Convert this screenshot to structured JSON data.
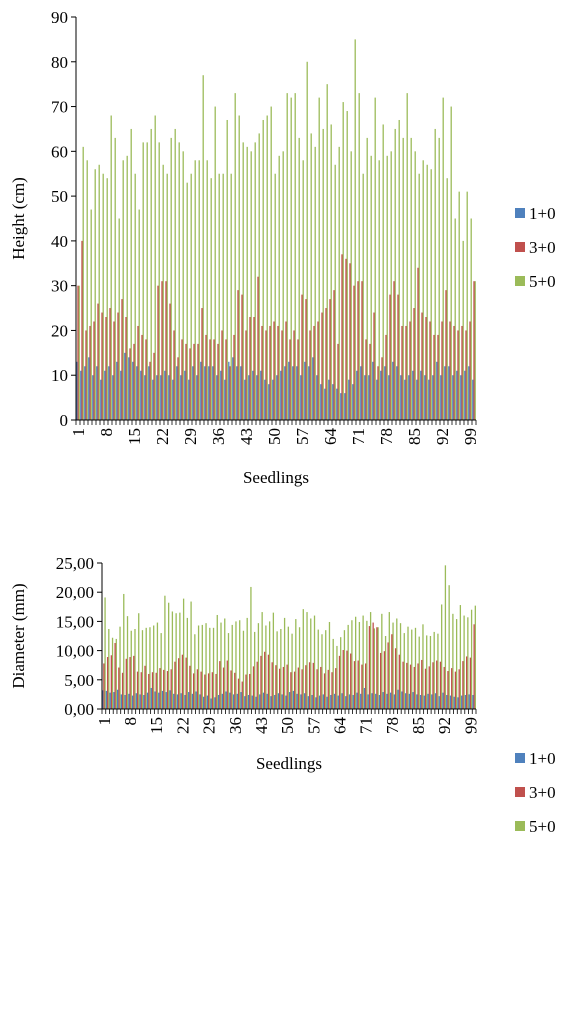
{
  "chart_data": [
    {
      "type": "bar",
      "xlabel": "Seedlings",
      "ylabel": "Height (cm)",
      "ylim": [
        0,
        90
      ],
      "yticks": [
        "0",
        "10",
        "20",
        "30",
        "40",
        "50",
        "60",
        "70",
        "80",
        "90"
      ],
      "x_tick_labels": [
        "1",
        "8",
        "15",
        "22",
        "29",
        "36",
        "43",
        "50",
        "57",
        "64",
        "71",
        "78",
        "85",
        "92",
        "99"
      ],
      "categories_count": 100,
      "legend_position": "right",
      "series": [
        {
          "name": "1+0",
          "color": "#4f81bd",
          "values": [
            13,
            11,
            12,
            14,
            10,
            12,
            9,
            11,
            12,
            10,
            13,
            11,
            15,
            14,
            13,
            12,
            11,
            10,
            12,
            9,
            10,
            10,
            11,
            10,
            9,
            12,
            10,
            11,
            9,
            12,
            10,
            13,
            12,
            12,
            12,
            10,
            11,
            9,
            13,
            14,
            12,
            12,
            9,
            10,
            11,
            10,
            11,
            9,
            8,
            9,
            10,
            11,
            12,
            13,
            12,
            12,
            10,
            13,
            12,
            14,
            10,
            8,
            7,
            9,
            8,
            7,
            6,
            6,
            9,
            8,
            11,
            12,
            10,
            10,
            13,
            9,
            11,
            12,
            10,
            13,
            12,
            10,
            9,
            10,
            11,
            9,
            11,
            10,
            9,
            10,
            13,
            10,
            12,
            12,
            10,
            11,
            10,
            11,
            12,
            9
          ]
        },
        {
          "name": "3+0",
          "color": "#c0504d",
          "values": [
            30,
            40,
            20,
            21,
            22,
            26,
            24,
            23,
            25,
            22,
            24,
            27,
            23,
            16,
            17,
            21,
            19,
            18,
            13,
            15,
            30,
            31,
            31,
            26,
            20,
            14,
            18,
            17,
            16,
            17,
            17,
            25,
            19,
            18,
            18,
            17,
            20,
            18,
            12,
            19,
            29,
            28,
            20,
            23,
            23,
            32,
            21,
            20,
            21,
            22,
            21,
            20,
            22,
            18,
            20,
            18,
            28,
            27,
            20,
            21,
            22,
            24,
            25,
            27,
            29,
            17,
            37,
            36,
            35,
            30,
            31,
            31,
            18,
            17,
            24,
            12,
            14,
            19,
            28,
            31,
            28,
            21,
            21,
            22,
            25,
            34,
            24,
            23,
            22,
            19,
            19,
            22,
            29,
            22,
            21,
            20,
            21,
            20,
            22,
            31
          ]
        },
        {
          "name": "5+0",
          "color": "#9bbb59",
          "values": [
            30,
            61,
            58,
            47,
            56,
            57,
            55,
            54,
            68,
            63,
            45,
            58,
            59,
            65,
            55,
            47,
            62,
            62,
            65,
            68,
            62,
            57,
            55,
            63,
            65,
            62,
            60,
            53,
            55,
            58,
            58,
            77,
            58,
            54,
            70,
            55,
            55,
            67,
            55,
            73,
            68,
            62,
            61,
            60,
            62,
            64,
            67,
            68,
            70,
            55,
            59,
            60,
            73,
            72,
            73,
            63,
            58,
            80,
            64,
            61,
            72,
            65,
            75,
            66,
            57,
            61,
            71,
            69,
            60,
            85,
            73,
            55,
            63,
            59,
            72,
            58,
            66,
            59,
            60,
            65,
            67,
            63,
            73,
            63,
            60,
            55,
            58,
            57,
            56,
            65,
            63,
            72,
            54,
            70,
            45,
            51,
            40,
            51,
            45,
            31
          ]
        }
      ]
    },
    {
      "type": "bar",
      "xlabel": "Seedlings",
      "ylabel": "Diameter (mm)",
      "ylim": [
        0,
        25
      ],
      "yticks": [
        "0,00",
        "5,00",
        "10,00",
        "15,00",
        "20,00",
        "25,00"
      ],
      "x_tick_labels": [
        "1",
        "8",
        "15",
        "22",
        "29",
        "36",
        "43",
        "50",
        "57",
        "64",
        "71",
        "78",
        "85",
        "92",
        "99"
      ],
      "categories_count": 100,
      "legend_position": "right",
      "series": [
        {
          "name": "1+0",
          "color": "#4f81bd",
          "values": [
            3.2,
            3.1,
            2.8,
            2.9,
            3.3,
            2.5,
            2.4,
            2.6,
            2.3,
            2.7,
            2.5,
            2.4,
            2.8,
            3.6,
            3.0,
            2.8,
            3.1,
            2.9,
            3.2,
            2.6,
            2.5,
            2.7,
            2.4,
            2.9,
            2.6,
            3.0,
            2.5,
            2.1,
            2.3,
            1.8,
            2.0,
            2.4,
            2.6,
            3.0,
            2.8,
            2.5,
            2.6,
            2.9,
            2.2,
            2.4,
            2.3,
            2.1,
            2.5,
            2.8,
            2.6,
            2.2,
            2.4,
            2.7,
            2.5,
            2.3,
            2.9,
            3.1,
            2.6,
            2.5,
            2.7,
            2.2,
            2.4,
            2.0,
            2.3,
            2.5,
            2.1,
            2.4,
            2.6,
            2.3,
            2.7,
            2.2,
            2.5,
            2.4,
            2.8,
            2.6,
            3.6,
            2.5,
            2.7,
            2.6,
            2.4,
            2.9,
            2.6,
            2.8,
            2.5,
            3.3,
            3.0,
            2.7,
            2.6,
            2.9,
            2.5,
            2.4,
            2.3,
            2.6,
            2.5,
            2.7,
            2.2,
            2.8,
            2.4,
            2.3,
            2.1,
            2.0,
            2.3,
            2.4,
            2.5,
            2.4
          ]
        },
        {
          "name": "3+0",
          "color": "#c0504d",
          "values": [
            7.8,
            8.9,
            9.2,
            11.3,
            7.1,
            6.2,
            8.6,
            8.9,
            9.1,
            6.4,
            6.3,
            7.4,
            6.0,
            6.3,
            6.2,
            7.0,
            6.7,
            6.5,
            6.8,
            8.1,
            8.7,
            9.3,
            8.8,
            7.4,
            6.1,
            6.8,
            6.4,
            5.9,
            6.1,
            6.3,
            6.0,
            8.2,
            7.1,
            8.3,
            6.6,
            6.2,
            5.2,
            4.7,
            5.9,
            6.0,
            7.3,
            8.1,
            9.1,
            9.8,
            9.3,
            8.0,
            7.5,
            6.9,
            7.2,
            7.6,
            6.3,
            6.4,
            7.1,
            6.8,
            7.5,
            8.0,
            7.9,
            6.8,
            7.2,
            6.1,
            6.7,
            6.3,
            7.0,
            9.1,
            10.1,
            10.0,
            9.5,
            8.2,
            8.3,
            7.6,
            7.8,
            14.2,
            14.8,
            14.0,
            9.6,
            9.9,
            11.4,
            12.8,
            10.4,
            9.3,
            8.1,
            7.9,
            7.6,
            7.2,
            7.8,
            8.4,
            6.9,
            7.3,
            8.0,
            8.3,
            8.1,
            7.2,
            6.5,
            7.0,
            6.4,
            6.8,
            8.2,
            9.0,
            8.8,
            14.5
          ]
        },
        {
          "name": "5+0",
          "color": "#9bbb59",
          "values": [
            19.1,
            13.7,
            12.2,
            12.0,
            14.1,
            19.7,
            15.9,
            13.4,
            13.7,
            16.4,
            13.5,
            13.9,
            14.0,
            14.3,
            14.8,
            13.0,
            19.4,
            18.2,
            16.7,
            16.4,
            16.5,
            18.9,
            15.6,
            18.4,
            12.8,
            14.3,
            14.4,
            14.7,
            13.9,
            13.9,
            16.1,
            14.8,
            15.5,
            13.0,
            14.4,
            15.0,
            15.2,
            13.4,
            15.6,
            20.9,
            13.2,
            14.7,
            16.6,
            14.3,
            15.0,
            16.5,
            13.3,
            13.7,
            15.6,
            14.1,
            12.9,
            15.4,
            14.0,
            17.1,
            16.6,
            15.5,
            16.0,
            13.6,
            12.8,
            13.5,
            14.9,
            12.0,
            10.8,
            12.3,
            13.5,
            14.4,
            15.2,
            15.8,
            14.9,
            16.0,
            15.1,
            16.6,
            13.8,
            14.0,
            16.3,
            12.5,
            16.6,
            14.8,
            15.5,
            14.7,
            13.0,
            14.1,
            13.6,
            13.9,
            12.4,
            14.5,
            12.6,
            12.5,
            13.2,
            12.9,
            17.9,
            24.6,
            21.2,
            16.3,
            15.4,
            17.8,
            16.0,
            15.7,
            17.0,
            17.7
          ]
        }
      ]
    }
  ]
}
